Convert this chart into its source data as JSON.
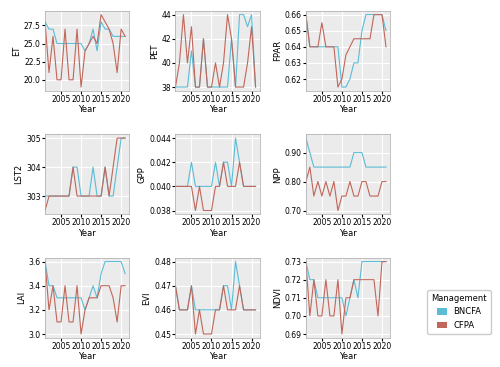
{
  "years": [
    2001,
    2002,
    2003,
    2004,
    2005,
    2006,
    2007,
    2008,
    2009,
    2010,
    2011,
    2012,
    2013,
    2014,
    2015,
    2016,
    2017,
    2018,
    2019,
    2020,
    2021
  ],
  "ET": {
    "BNCFA": [
      28,
      27,
      27,
      25,
      25,
      25,
      25,
      25,
      25,
      25,
      24,
      25,
      27,
      24,
      28,
      27,
      27,
      26,
      26,
      26,
      26
    ],
    "CFPA": [
      28,
      21,
      26,
      20,
      20,
      27,
      20,
      20,
      27,
      19,
      24,
      25,
      26,
      25,
      29,
      28,
      27,
      25,
      21,
      27,
      26
    ]
  },
  "PET": {
    "BNCFA": [
      38,
      38,
      38,
      38,
      41,
      38,
      38,
      42,
      38,
      38,
      38,
      38,
      38,
      38,
      42,
      38,
      44,
      44,
      43,
      44,
      38
    ],
    "CFPA": [
      38,
      40,
      44,
      40,
      43,
      38,
      38,
      42,
      38,
      38,
      40,
      38,
      40,
      44,
      42,
      38,
      38,
      38,
      40,
      43,
      38
    ]
  },
  "FPAR": {
    "BNCFA": [
      0.66,
      0.64,
      0.64,
      0.64,
      0.64,
      0.64,
      0.64,
      0.64,
      0.64,
      0.615,
      0.615,
      0.62,
      0.63,
      0.63,
      0.65,
      0.66,
      0.66,
      0.66,
      0.66,
      0.66,
      0.65
    ],
    "CFPA": [
      0.66,
      0.64,
      0.64,
      0.64,
      0.655,
      0.64,
      0.64,
      0.64,
      0.615,
      0.62,
      0.635,
      0.64,
      0.645,
      0.645,
      0.645,
      0.645,
      0.645,
      0.66,
      0.66,
      0.66,
      0.64
    ]
  },
  "LST2": {
    "BNCFA": [
      303,
      303,
      303,
      303,
      303,
      303,
      303,
      304,
      304,
      303,
      303,
      303,
      304,
      303,
      303,
      304,
      303,
      303,
      304,
      305,
      305
    ],
    "CFPA": [
      302.5,
      303,
      303,
      303,
      303,
      303,
      303,
      304,
      303,
      303,
      303,
      303,
      303,
      303,
      303,
      304,
      303,
      304,
      305,
      305,
      305
    ]
  },
  "GPP": {
    "BNCFA": [
      0.04,
      0.04,
      0.04,
      0.04,
      0.042,
      0.04,
      0.04,
      0.04,
      0.04,
      0.04,
      0.042,
      0.04,
      0.042,
      0.042,
      0.04,
      0.044,
      0.042,
      0.04,
      0.04,
      0.04,
      0.04
    ],
    "CFPA": [
      0.04,
      0.04,
      0.04,
      0.04,
      0.04,
      0.038,
      0.04,
      0.038,
      0.038,
      0.038,
      0.04,
      0.04,
      0.042,
      0.04,
      0.04,
      0.04,
      0.042,
      0.04,
      0.04,
      0.04,
      0.04
    ]
  },
  "NPP": {
    "BNCFA": [
      0.95,
      0.9,
      0.85,
      0.85,
      0.85,
      0.85,
      0.85,
      0.85,
      0.85,
      0.85,
      0.85,
      0.85,
      0.9,
      0.9,
      0.9,
      0.85,
      0.85,
      0.85,
      0.85,
      0.85,
      0.85
    ],
    "CFPA": [
      0.8,
      0.85,
      0.75,
      0.8,
      0.75,
      0.8,
      0.75,
      0.8,
      0.7,
      0.75,
      0.75,
      0.8,
      0.75,
      0.75,
      0.8,
      0.8,
      0.75,
      0.75,
      0.75,
      0.8,
      0.8
    ]
  },
  "LAI": {
    "BNCFA": [
      3.6,
      3.4,
      3.4,
      3.3,
      3.3,
      3.3,
      3.3,
      3.3,
      3.3,
      3.3,
      3.2,
      3.3,
      3.4,
      3.3,
      3.5,
      3.6,
      3.6,
      3.6,
      3.6,
      3.6,
      3.5
    ],
    "CFPA": [
      3.6,
      3.2,
      3.4,
      3.1,
      3.1,
      3.4,
      3.1,
      3.1,
      3.4,
      3.0,
      3.2,
      3.3,
      3.3,
      3.3,
      3.4,
      3.4,
      3.4,
      3.3,
      3.1,
      3.4,
      3.4
    ]
  },
  "EVI": {
    "BNCFA": [
      0.47,
      0.46,
      0.46,
      0.46,
      0.47,
      0.46,
      0.46,
      0.46,
      0.46,
      0.46,
      0.46,
      0.46,
      0.47,
      0.47,
      0.46,
      0.48,
      0.47,
      0.46,
      0.46,
      0.46,
      0.46
    ],
    "CFPA": [
      0.47,
      0.46,
      0.46,
      0.46,
      0.47,
      0.45,
      0.46,
      0.45,
      0.45,
      0.45,
      0.46,
      0.46,
      0.47,
      0.46,
      0.46,
      0.46,
      0.47,
      0.46,
      0.46,
      0.46,
      0.46
    ]
  },
  "NDVI": {
    "BNCFA": [
      0.73,
      0.72,
      0.72,
      0.71,
      0.71,
      0.71,
      0.71,
      0.71,
      0.71,
      0.71,
      0.7,
      0.71,
      0.72,
      0.71,
      0.73,
      0.73,
      0.73,
      0.73,
      0.73,
      0.73,
      0.73
    ],
    "CFPA": [
      0.73,
      0.7,
      0.72,
      0.7,
      0.7,
      0.72,
      0.7,
      0.7,
      0.72,
      0.69,
      0.71,
      0.71,
      0.72,
      0.72,
      0.72,
      0.72,
      0.72,
      0.72,
      0.7,
      0.73,
      0.73
    ]
  },
  "color_BNCFA": "#5BBCD6",
  "color_CFPA": "#C1665A",
  "bg_color": "#EBEBEB",
  "grid_color": "white",
  "title_fontsize": 7,
  "label_fontsize": 6,
  "tick_fontsize": 5.5
}
